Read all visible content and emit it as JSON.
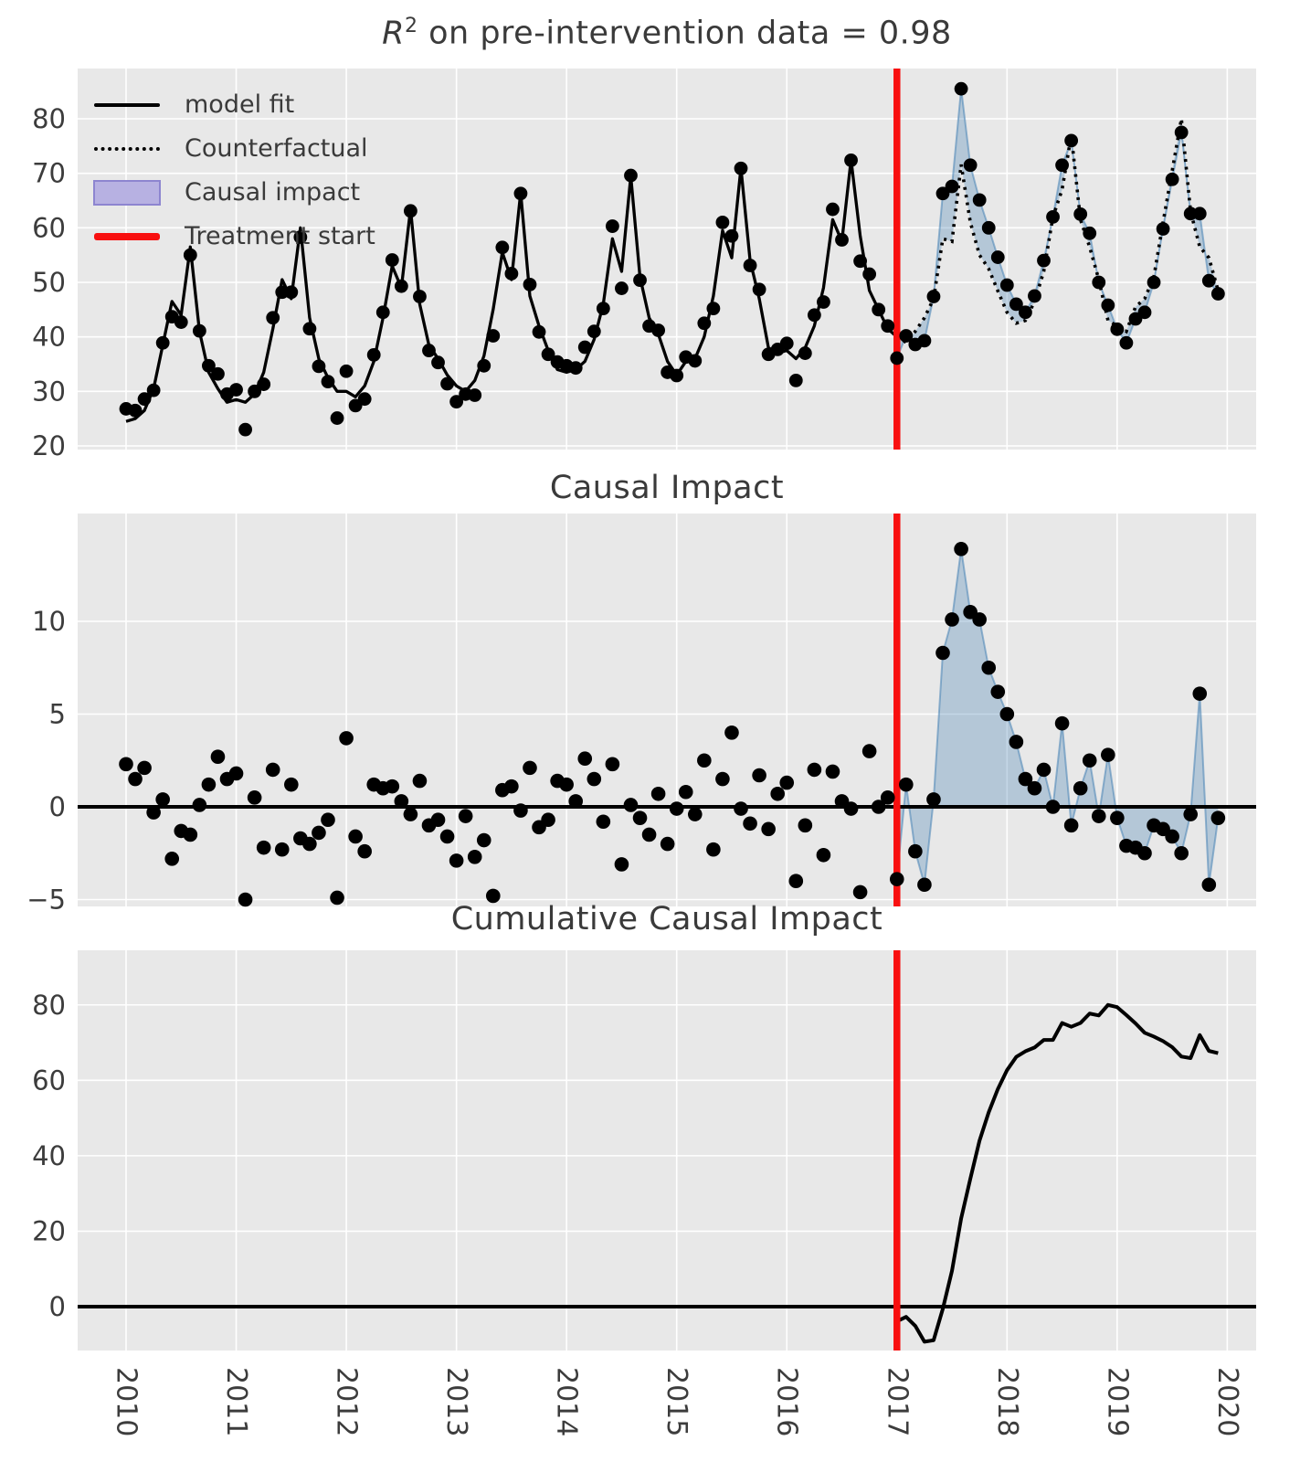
{
  "titles": {
    "top_r": "R",
    "top_sup": "2",
    "top_rest": " on pre-intervention data = 0.98",
    "middle": "Causal Impact",
    "bottom": "Cumulative Causal Impact"
  },
  "legend": {
    "items": [
      {
        "label": "model fit",
        "glyph": "solid-line"
      },
      {
        "label": "Counterfactual",
        "glyph": "dotted-line"
      },
      {
        "label": "Causal impact",
        "glyph": "patch"
      },
      {
        "label": "Treatment start",
        "glyph": "red-line"
      }
    ]
  },
  "style": {
    "panel_bg": "#e8e8e8",
    "grid_color": "#ffffff",
    "text_color": "#3c3c3c",
    "line_color": "#000000",
    "dot_color": "#000000",
    "impact_fill": "rgba(70,130,180,0.32)",
    "impact_edge": "rgba(70,130,180,0.55)",
    "treatment_color": "#f80f0f",
    "zero_line_color": "#000000"
  },
  "x_axis": {
    "tick_labels": [
      "2010",
      "2011",
      "2012",
      "2013",
      "2014",
      "2015",
      "2016",
      "2017",
      "2018",
      "2019",
      "2020"
    ],
    "start": "2010-01",
    "end": "2019-12",
    "freq": "monthly",
    "treatment_start": "2017-01",
    "treatment_month_index": 84
  },
  "chart_data": [
    {
      "type": "line",
      "title": "R^2 on pre-intervention data = 0.98",
      "ylim": [
        19,
        89
      ],
      "yticks": [
        20,
        30,
        40,
        50,
        60,
        70,
        80
      ],
      "legend_position": "upper left",
      "grid": true,
      "annotations": [
        "vertical red treatment line at 2017-01",
        "blue shaded area between observed and counterfactual after 2017-01"
      ],
      "series": [
        {
          "name": "observed",
          "style": "scatter",
          "start": "2010-01",
          "values": [
            26.8,
            26.5,
            28.6,
            30.2,
            38.9,
            43.7,
            42.7,
            55.0,
            41.1,
            34.7,
            33.2,
            29.5,
            30.3,
            23.0,
            30.0,
            31.3,
            43.5,
            48.2,
            48.2,
            58.3,
            41.5,
            34.6,
            31.8,
            25.1,
            33.7,
            27.4,
            28.6,
            36.7,
            44.5,
            54.1,
            49.3,
            63.1,
            47.4,
            37.5,
            35.3,
            31.4,
            28.1,
            29.5,
            29.3,
            34.7,
            40.2,
            56.4,
            51.6,
            66.3,
            49.6,
            40.9,
            36.8,
            35.4,
            34.7,
            34.3,
            38.1,
            41.0,
            45.2,
            60.3,
            48.9,
            69.6,
            50.4,
            42.0,
            41.2,
            33.5,
            32.9,
            36.3,
            35.6,
            42.5,
            45.2,
            61.0,
            58.5,
            70.9,
            53.1,
            48.7,
            36.8,
            37.7,
            38.8,
            32.0,
            37.0,
            44.0,
            46.4,
            63.4,
            57.8,
            72.4,
            53.9,
            51.5,
            45.0,
            42.0,
            36.1,
            40.2,
            38.6,
            39.3,
            47.4,
            66.3,
            67.6,
            85.5,
            71.5,
            65.1,
            60.0,
            54.6,
            49.5,
            46.0,
            44.5,
            47.5,
            54.0,
            62.0,
            71.5,
            76.0,
            62.5,
            59.0,
            50.0,
            45.8,
            41.4,
            38.9,
            43.3,
            44.5,
            50.0,
            59.8,
            68.9,
            77.5,
            62.6,
            62.6,
            50.3,
            47.9
          ]
        },
        {
          "name": "model fit",
          "style": "solid-line",
          "start": "2010-01",
          "end": "2016-12",
          "values": [
            24.5,
            25.0,
            26.5,
            30.5,
            38.5,
            46.5,
            44.0,
            56.5,
            41.0,
            33.5,
            30.5,
            28.0,
            28.5,
            28.0,
            29.5,
            33.5,
            41.5,
            50.5,
            47.0,
            60.0,
            43.5,
            36.0,
            32.5,
            30.0,
            30.0,
            29.0,
            31.0,
            35.5,
            43.5,
            53.0,
            49.0,
            63.5,
            46.0,
            38.5,
            36.0,
            33.0,
            31.0,
            30.0,
            32.0,
            36.5,
            45.0,
            55.5,
            50.5,
            66.5,
            47.5,
            42.0,
            37.5,
            34.0,
            33.5,
            34.0,
            35.5,
            39.5,
            46.0,
            58.0,
            52.0,
            69.5,
            51.0,
            43.5,
            40.5,
            35.5,
            33.0,
            35.5,
            36.0,
            40.0,
            47.5,
            59.5,
            54.5,
            71.0,
            54.0,
            47.0,
            38.0,
            37.0,
            37.5,
            36.0,
            38.0,
            42.0,
            49.0,
            61.5,
            57.5,
            72.5,
            58.5,
            48.5,
            45.0,
            41.5
          ]
        },
        {
          "name": "Counterfactual",
          "style": "dotted-line",
          "start": "2017-01",
          "end": "2019-12",
          "values": [
            40.0,
            39.0,
            41.0,
            43.5,
            47.0,
            58.0,
            57.5,
            71.6,
            61.0,
            55.0,
            52.5,
            48.4,
            44.5,
            42.5,
            43.0,
            46.5,
            52.0,
            62.0,
            67.0,
            77.0,
            61.5,
            56.5,
            50.5,
            43.0,
            42.0,
            41.0,
            45.5,
            47.0,
            51.0,
            61.0,
            70.5,
            80.0,
            63.0,
            56.5,
            54.5,
            48.5
          ]
        }
      ]
    },
    {
      "type": "scatter",
      "title": "Causal Impact",
      "ylim": [
        -6.4,
        15.8
      ],
      "yticks": [
        -5,
        0,
        5,
        10
      ],
      "grid": true,
      "annotations": [
        "black horizontal zero line",
        "vertical red treatment line at 2017-01",
        "blue shaded area between points and zero after 2017-01"
      ],
      "series": [
        {
          "name": "pointwise causal impact (observed - counterfactual)",
          "style": "scatter",
          "start": "2010-01",
          "values": [
            2.3,
            1.5,
            2.1,
            -0.3,
            0.4,
            -2.8,
            -1.3,
            -1.5,
            0.1,
            1.2,
            2.7,
            1.5,
            1.8,
            -5.0,
            0.5,
            -2.2,
            2.0,
            -2.3,
            1.2,
            -1.7,
            -2.0,
            -1.4,
            -0.7,
            -4.9,
            3.7,
            -1.6,
            -2.4,
            1.2,
            1.0,
            1.1,
            0.3,
            -0.4,
            1.4,
            -1.0,
            -0.7,
            -1.6,
            -2.9,
            -0.5,
            -2.7,
            -1.8,
            -4.8,
            0.9,
            1.1,
            -0.2,
            2.1,
            -1.1,
            -0.7,
            1.4,
            1.2,
            0.3,
            2.6,
            1.5,
            -0.8,
            2.3,
            -3.1,
            0.1,
            -0.6,
            -1.5,
            0.7,
            -2.0,
            -0.1,
            0.8,
            -0.4,
            2.5,
            -2.3,
            1.5,
            4.0,
            -0.1,
            -0.9,
            1.7,
            -1.2,
            0.7,
            1.3,
            -4.0,
            -1.0,
            2.0,
            -2.6,
            1.9,
            0.3,
            -0.1,
            -4.6,
            3.0,
            0.0,
            0.5,
            -3.9,
            1.2,
            -2.4,
            -4.2,
            0.4,
            8.3,
            10.1,
            13.9,
            10.5,
            10.1,
            7.5,
            6.2,
            5.0,
            3.5,
            1.5,
            1.0,
            2.0,
            0.0,
            4.5,
            -1.0,
            1.0,
            2.5,
            -0.5,
            2.8,
            -0.6,
            -2.1,
            -2.2,
            -2.5,
            -1.0,
            -1.2,
            -1.6,
            -2.5,
            -0.4,
            6.1,
            -4.2,
            -0.6
          ]
        }
      ]
    },
    {
      "type": "line",
      "title": "Cumulative Causal Impact",
      "ylim": [
        -11.5,
        94
      ],
      "yticks": [
        0,
        20,
        40,
        60,
        80
      ],
      "grid": true,
      "annotations": [
        "black horizontal zero line",
        "vertical red treatment line at 2017-01"
      ],
      "series": [
        {
          "name": "cumulative causal impact",
          "style": "solid-line",
          "start": "2017-01",
          "end": "2019-12",
          "values": [
            -3.9,
            -2.7,
            -5.1,
            -9.3,
            -8.9,
            -0.6,
            9.5,
            23.4,
            33.9,
            44.0,
            51.5,
            57.7,
            62.7,
            66.2,
            67.7,
            68.7,
            70.7,
            70.7,
            75.2,
            74.2,
            75.2,
            77.7,
            77.2,
            80.0,
            79.4,
            77.3,
            75.1,
            72.6,
            71.6,
            70.4,
            68.8,
            66.3,
            65.9,
            72.0,
            67.8,
            67.2
          ]
        }
      ]
    }
  ]
}
